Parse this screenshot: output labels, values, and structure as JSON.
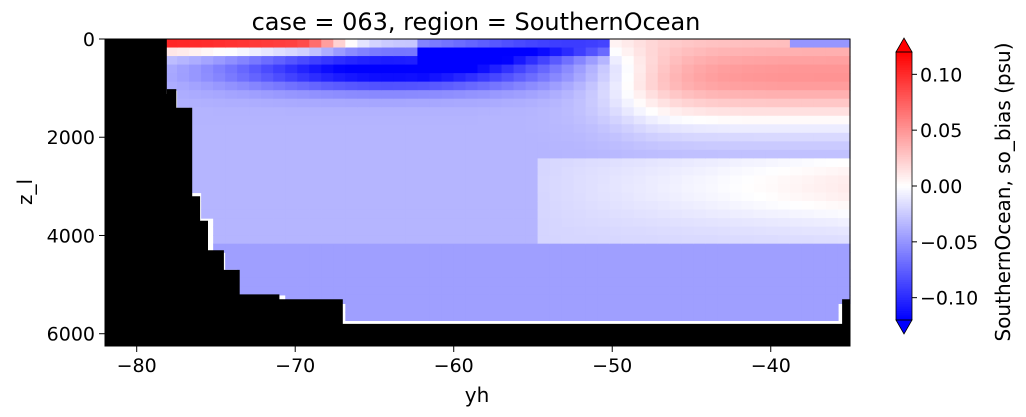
{
  "chart_data": {
    "type": "heatmap",
    "title": "case = 063, region = SouthernOcean",
    "xlabel": "yh",
    "ylabel": "z_l",
    "xlim": [
      -82,
      -35
    ],
    "ylim": [
      6250,
      0
    ],
    "y_inverted": true,
    "grid": false,
    "x_ticks": [
      {
        "value": -80,
        "label": "−80"
      },
      {
        "value": -70,
        "label": "−70"
      },
      {
        "value": -60,
        "label": "−60"
      },
      {
        "value": -50,
        "label": "−50"
      },
      {
        "value": -40,
        "label": "−40"
      }
    ],
    "y_ticks": [
      {
        "value": 0,
        "label": "0"
      },
      {
        "value": 2000,
        "label": "2000"
      },
      {
        "value": 4000,
        "label": "4000"
      },
      {
        "value": 6000,
        "label": "6000"
      }
    ],
    "colorbar": {
      "label": "SouthernOcean, so_bias (psu)",
      "cmap": "bwr",
      "vmin": -0.12,
      "vmax": 0.12,
      "extend": "both",
      "ticks": [
        {
          "value": 0.1,
          "label": "0.10"
        },
        {
          "value": 0.05,
          "label": "0.05"
        },
        {
          "value": 0.0,
          "label": "0.00"
        },
        {
          "value": -0.05,
          "label": "−0.05"
        },
        {
          "value": -0.1,
          "label": "−0.10"
        }
      ]
    },
    "land_color": "#000000",
    "seafloor_depth": {
      "yh": [
        -82,
        -78.1,
        -77.5,
        -76.5,
        -76,
        -75.5,
        -74.5,
        -73.5,
        -71,
        -67,
        -59,
        -54.2,
        -53,
        -51,
        -49.3,
        -35.5,
        -35
      ],
      "depth": [
        6250,
        1120,
        1020,
        1400,
        3200,
        3700,
        4300,
        4700,
        5200,
        5300,
        5800,
        5800,
        5800,
        5800,
        5800,
        5800,
        5300
      ]
    },
    "features": [
      {
        "region": "near-surface shelf band",
        "yh": [
          -78,
          -70
        ],
        "depth": [
          0,
          300
        ],
        "value": 0.11
      },
      {
        "region": "subsurface fresh core",
        "yh": [
          -75,
          -52
        ],
        "depth": [
          200,
          1200
        ],
        "value": -0.11
      },
      {
        "region": "upper ocean north",
        "yh": [
          -50,
          -35
        ],
        "depth": [
          0,
          1800
        ],
        "value": 0.07
      },
      {
        "region": "mid depth interior",
        "yh": [
          -75,
          -45
        ],
        "depth": [
          1500,
          3500
        ],
        "value": -0.04
      },
      {
        "region": "deep interior",
        "yh": [
          -72,
          -35
        ],
        "depth": [
          3500,
          5800
        ],
        "value": -0.04
      },
      {
        "region": "northern surface patch",
        "yh": [
          -38,
          -35
        ],
        "depth": [
          0,
          200
        ],
        "value": -0.08
      }
    ]
  }
}
